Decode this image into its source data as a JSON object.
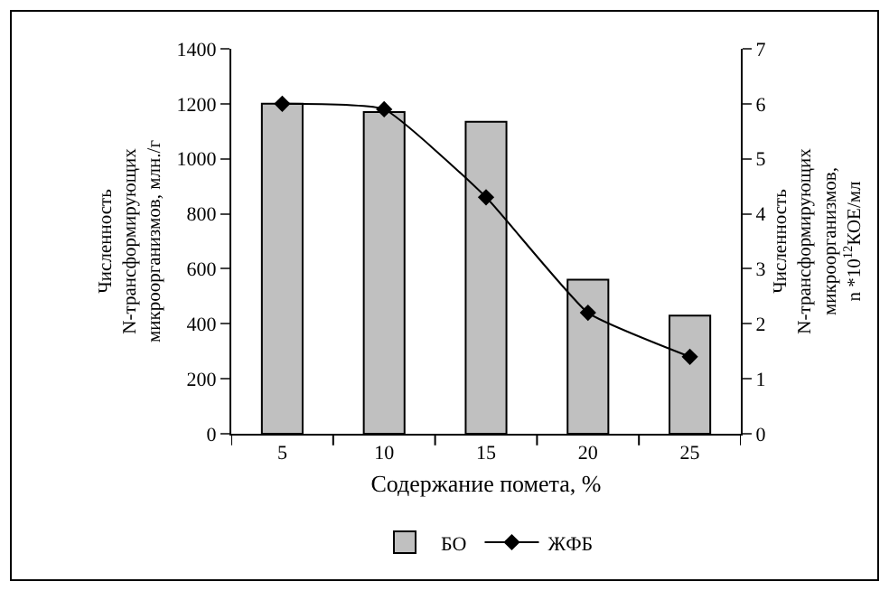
{
  "chart_data": {
    "type": "bar",
    "categories": [
      "5",
      "10",
      "15",
      "20",
      "25"
    ],
    "xlabel": "Содержание помета, %",
    "ylabel": "Численность\nN-трансформирующих\nмикроорганизмов, млн./г",
    "y2label": "Численность\nN-трансформирующих\nмикроорганизмов,\nn *10$^{12}$КОЕ/мл",
    "series": [
      {
        "name": "БО",
        "color": "#c0c0c0",
        "values": [
          1200,
          1170,
          1135,
          560,
          430
        ]
      },
      {
        "name": "ЖФБ",
        "type": "line",
        "axis": "y2",
        "color": "#000000",
        "marker": "diamond",
        "values": [
          6.0,
          5.9,
          4.3,
          2.2,
          1.4
        ]
      }
    ],
    "ylim": [
      0,
      1400
    ],
    "yticks": [
      0,
      200,
      400,
      600,
      800,
      1000,
      1200,
      1400
    ],
    "y2lim": [
      0,
      7
    ],
    "y2ticks": [
      0,
      1,
      2,
      3,
      4,
      5,
      6,
      7
    ],
    "legend": "bottom"
  }
}
